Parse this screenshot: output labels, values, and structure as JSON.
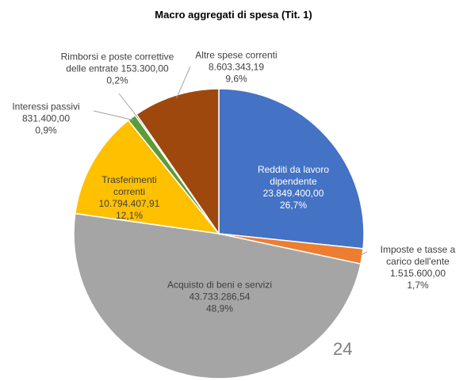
{
  "chart_data": {
    "type": "pie",
    "title": "Macro aggregati di spesa (Tit. 1)",
    "categories": [
      "Redditi da lavoro dipendente",
      "Imposte e tasse a carico dell'ente",
      "Acquisto di beni e servizi",
      "Trasferimenti correnti",
      "Interessi passivi",
      "Rimborsi e poste correttive delle entrate",
      "Altre spese correnti"
    ],
    "values": [
      23849400.0,
      1515600.0,
      43733286.54,
      10794407.91,
      831400.0,
      153300.0,
      8603343.19
    ],
    "value_labels": [
      "23.849.400,00",
      "1.515.600,00",
      "43.733.286,54",
      "10.794.407,91",
      "831.400,00",
      "153.300,00",
      "8.603.343,19"
    ],
    "percent_labels": [
      "26,7%",
      "1,7%",
      "48,9%",
      "12,1%",
      "0,9%",
      "0,2%",
      "9,6%"
    ],
    "colors": [
      "#4472c4",
      "#ed7d31",
      "#a5a5a5",
      "#ffc000",
      "#5b9b3a",
      "#264478",
      "#9e480e"
    ]
  },
  "page_number": "24"
}
